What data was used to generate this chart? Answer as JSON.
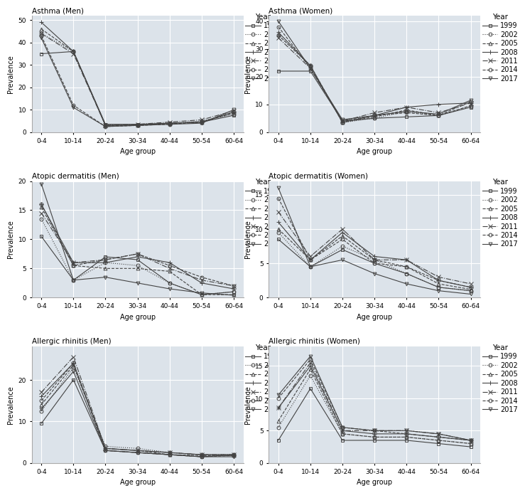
{
  "age_groups": [
    "0-4",
    "10-14",
    "20-24",
    "30-34",
    "40-44",
    "50-54",
    "60-64"
  ],
  "years": [
    "1999",
    "2002",
    "2005",
    "2008",
    "2011",
    "2014",
    "2017"
  ],
  "titles": [
    "Asthma (Men)",
    "Asthma (Women)",
    "Atopic dermatitis (Men)",
    "Atopic dermatitis (Women)",
    "Allergic rhinitis (Men)",
    "Allergic rhinitis (Women)"
  ],
  "data": {
    "Asthma (Men)": {
      "1999": [
        35,
        36,
        3.5,
        3.5,
        4.0,
        4.5,
        7.5
      ],
      "2002": [
        44,
        36,
        3.2,
        3.2,
        3.8,
        5.0,
        8.0
      ],
      "2005": [
        46,
        36,
        3.0,
        3.0,
        3.8,
        4.5,
        8.5
      ],
      "2008": [
        49,
        36,
        3.0,
        3.2,
        4.0,
        4.5,
        9.0
      ],
      "2011": [
        44,
        35,
        3.0,
        3.5,
        4.5,
        5.5,
        9.5
      ],
      "2014": [
        43,
        12,
        2.5,
        3.0,
        3.5,
        4.5,
        9.0
      ],
      "2017": [
        42,
        11,
        2.5,
        3.0,
        3.5,
        4.0,
        10.0
      ]
    },
    "Asthma (Women)": {
      "1999": [
        22,
        22,
        4.0,
        5.0,
        5.5,
        6.0,
        9.0
      ],
      "2002": [
        35,
        24,
        3.5,
        5.0,
        7.5,
        6.0,
        9.5
      ],
      "2005": [
        35,
        24,
        3.5,
        5.5,
        8.0,
        6.0,
        9.5
      ],
      "2008": [
        36,
        24,
        3.5,
        6.0,
        9.0,
        10.0,
        10.5
      ],
      "2011": [
        34,
        23,
        4.0,
        7.0,
        9.0,
        7.0,
        10.5
      ],
      "2014": [
        38,
        23,
        4.0,
        6.0,
        7.0,
        6.0,
        11.0
      ],
      "2017": [
        40,
        23,
        4.5,
        6.0,
        7.5,
        6.5,
        11.5
      ]
    },
    "Atopic dermatitis (Men)": {
      "1999": [
        10.5,
        3.0,
        7.0,
        6.5,
        2.5,
        0.5,
        1.0
      ],
      "2002": [
        13.5,
        3.0,
        6.0,
        5.5,
        2.5,
        0.5,
        1.0
      ],
      "2005": [
        15.5,
        5.5,
        5.0,
        5.0,
        4.5,
        0.5,
        0.5
      ],
      "2008": [
        16.0,
        6.0,
        6.0,
        7.0,
        6.0,
        2.5,
        1.5
      ],
      "2011": [
        14.5,
        6.0,
        6.5,
        7.5,
        5.0,
        3.0,
        2.0
      ],
      "2014": [
        16.0,
        5.5,
        6.5,
        7.5,
        5.5,
        3.5,
        2.0
      ],
      "2017": [
        19.5,
        3.0,
        3.5,
        2.5,
        1.5,
        0.8,
        0.4
      ]
    },
    "Atopic dermatitis (Women)": {
      "1999": [
        8.5,
        4.5,
        7.0,
        5.0,
        3.5,
        1.5,
        1.0
      ],
      "2002": [
        9.5,
        4.5,
        7.5,
        5.5,
        3.5,
        1.5,
        1.0
      ],
      "2005": [
        10.0,
        5.5,
        9.0,
        5.5,
        4.5,
        2.0,
        1.2
      ],
      "2008": [
        11.0,
        5.5,
        9.5,
        6.0,
        5.5,
        2.5,
        1.5
      ],
      "2011": [
        12.5,
        6.0,
        10.0,
        5.5,
        5.5,
        3.0,
        2.0
      ],
      "2014": [
        14.5,
        5.5,
        8.5,
        5.0,
        4.5,
        2.5,
        1.5
      ],
      "2017": [
        16.0,
        4.5,
        5.5,
        3.5,
        2.0,
        1.0,
        0.5
      ]
    },
    "Allergic rhinitis (Men)": {
      "1999": [
        9.5,
        20.0,
        3.0,
        2.5,
        2.0,
        1.5,
        2.0
      ],
      "2002": [
        12.5,
        23.0,
        4.0,
        3.5,
        2.5,
        2.0,
        2.0
      ],
      "2005": [
        14.0,
        23.5,
        3.5,
        3.0,
        2.0,
        1.8,
        1.8
      ],
      "2008": [
        16.0,
        24.0,
        3.5,
        3.0,
        2.5,
        2.0,
        2.0
      ],
      "2011": [
        17.0,
        25.5,
        3.5,
        3.0,
        2.5,
        2.0,
        2.0
      ],
      "2014": [
        15.0,
        24.0,
        3.0,
        2.5,
        2.0,
        1.5,
        1.8
      ],
      "2017": [
        13.0,
        22.0,
        3.0,
        2.5,
        2.0,
        1.5,
        1.5
      ]
    },
    "Allergic rhinitis (Women)": {
      "1999": [
        3.5,
        11.5,
        3.5,
        3.5,
        3.5,
        3.0,
        2.5
      ],
      "2002": [
        5.5,
        13.5,
        4.5,
        4.0,
        4.0,
        3.5,
        3.0
      ],
      "2005": [
        6.5,
        14.5,
        4.5,
        4.0,
        4.0,
        3.5,
        3.0
      ],
      "2008": [
        8.5,
        15.0,
        5.0,
        4.5,
        4.5,
        4.0,
        3.5
      ],
      "2011": [
        8.5,
        15.5,
        5.0,
        5.0,
        5.0,
        4.5,
        3.5
      ],
      "2014": [
        10.0,
        16.0,
        5.5,
        5.0,
        4.5,
        4.0,
        3.5
      ],
      "2017": [
        10.5,
        16.5,
        5.5,
        5.0,
        5.0,
        4.5,
        3.5
      ]
    }
  },
  "ylims": {
    "Asthma (Men)": [
      0,
      52
    ],
    "Asthma (Women)": [
      0,
      42
    ],
    "Atopic dermatitis (Men)": [
      0,
      20
    ],
    "Atopic dermatitis (Women)": [
      0,
      17
    ],
    "Allergic rhinitis (Men)": [
      0,
      28
    ],
    "Allergic rhinitis (Women)": [
      0,
      18
    ]
  },
  "yticks": {
    "Asthma (Men)": [
      0,
      10,
      20,
      30,
      40,
      50
    ],
    "Asthma (Women)": [
      0,
      10,
      20,
      30,
      40
    ],
    "Atopic dermatitis (Men)": [
      0,
      5,
      10,
      15,
      20
    ],
    "Atopic dermatitis (Women)": [
      0,
      5,
      10,
      15
    ],
    "Allergic rhinitis (Men)": [
      0,
      10,
      20
    ],
    "Allergic rhinitis (Women)": [
      0,
      5,
      10,
      15
    ]
  },
  "line_styles": {
    "1999": {
      "linestyle": "-",
      "marker": "s",
      "markersize": 3.5,
      "lw": 0.8
    },
    "2002": {
      "linestyle": ":",
      "marker": "o",
      "markersize": 3.5,
      "lw": 0.8
    },
    "2005": {
      "linestyle": "--",
      "marker": "^",
      "markersize": 3.5,
      "lw": 0.8
    },
    "2008": {
      "linestyle": "-",
      "marker": "+",
      "markersize": 4.5,
      "lw": 0.8
    },
    "2011": {
      "linestyle": "-.",
      "marker": "x",
      "markersize": 4.0,
      "lw": 0.8
    },
    "2014": {
      "linestyle": "--",
      "marker": "o",
      "markersize": 3.5,
      "lw": 0.8
    },
    "2017": {
      "linestyle": "-",
      "marker": "v",
      "markersize": 3.5,
      "lw": 0.8
    }
  },
  "line_color": "#444444",
  "plot_bg": "#dce3ea",
  "fig_bg": "#ffffff",
  "grid_color": "#ffffff",
  "xlabel": "Age group",
  "ylabel": "Prevalence",
  "title_fontsize": 7.5,
  "axis_fontsize": 7.0,
  "tick_fontsize": 6.5,
  "legend_title_fontsize": 7.5,
  "legend_fontsize": 7.0
}
